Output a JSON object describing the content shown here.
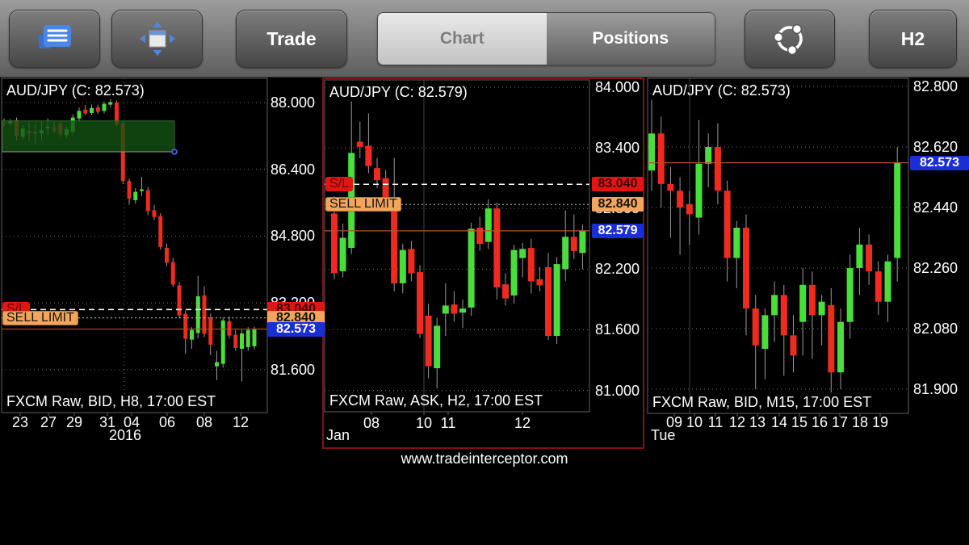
{
  "toolbar": {
    "buttons": {
      "trade": "Trade",
      "timeframe": "H2"
    },
    "tabs": [
      {
        "label": "Chart",
        "active": true
      },
      {
        "label": "Positions",
        "active": false
      }
    ],
    "icons": [
      "watchlist-icon",
      "arrange-windows-icon",
      "sync-icon"
    ]
  },
  "watermark": "www.tradeinterceptor.com",
  "colors": {
    "candle_up": "#4ade3c",
    "candle_down": "#ef2b20",
    "wick": "#9a9a9a",
    "grid": "#8a8a8a",
    "frame": "#5f5f5f",
    "current_price_line": "#b4532c",
    "price_tag_bg": "#1a2ed6",
    "stop_loss_bg": "#e31414",
    "sell_limit_bg": "#f3a55b",
    "selected_border": "#7c1414",
    "drawing_fill": "#145214"
  },
  "charts": [
    {
      "name": "chart-h8",
      "title": "AUD/JPY (C: 82.573)",
      "footer": "FXCM Raw, BID, H8, 17:00 EST",
      "selected": false,
      "y_axis": [
        {
          "p": 88.0,
          "t": "88.000"
        },
        {
          "p": 86.4,
          "t": "86.400"
        },
        {
          "p": 84.8,
          "t": "84.800"
        },
        {
          "p": 83.2,
          "t": "83.200"
        },
        {
          "p": 81.6,
          "t": "81.600"
        }
      ],
      "x_ticks": [
        "23",
        "27",
        "29",
        "31",
        "04",
        "06",
        "08",
        "12"
      ],
      "period": "2016",
      "orders": [
        {
          "kind": "sl",
          "tag": "S/L",
          "price": 83.04,
          "value": "83.040"
        },
        {
          "kind": "limit",
          "tag": "SELL LIMIT",
          "price": 82.84,
          "value": "82.840"
        }
      ],
      "current": {
        "price": 82.573,
        "label": "82.573"
      },
      "drawing": {
        "type": "rectangle",
        "top_price": 87.56,
        "bottom_price": 86.82
      },
      "candles": [
        [
          87.52,
          87.62,
          87.42,
          87.48
        ],
        [
          87.5,
          87.6,
          87.44,
          87.56
        ],
        [
          87.58,
          87.64,
          87.1,
          87.2
        ],
        [
          87.18,
          87.46,
          87.12,
          87.38
        ],
        [
          87.32,
          87.52,
          87.08,
          87.26
        ],
        [
          87.3,
          87.48,
          87.02,
          87.25
        ],
        [
          87.26,
          87.55,
          87.1,
          87.34
        ],
        [
          87.38,
          87.62,
          87.22,
          87.42
        ],
        [
          87.42,
          87.56,
          87.25,
          87.32
        ],
        [
          87.5,
          87.55,
          87.18,
          87.24
        ],
        [
          87.22,
          87.42,
          87.15,
          87.36
        ],
        [
          87.3,
          87.72,
          87.24,
          87.64
        ],
        [
          87.62,
          87.88,
          87.56,
          87.8
        ],
        [
          87.83,
          87.94,
          87.7,
          87.74
        ],
        [
          87.75,
          87.95,
          87.7,
          87.87
        ],
        [
          87.88,
          87.95,
          87.72,
          87.78
        ],
        [
          87.8,
          88.02,
          87.74,
          87.97
        ],
        [
          87.95,
          88.08,
          87.88,
          88.01
        ],
        [
          88.0,
          88.05,
          87.42,
          87.48
        ],
        [
          87.5,
          87.56,
          86.05,
          86.12
        ],
        [
          86.12,
          86.18,
          85.55,
          85.7
        ],
        [
          85.66,
          85.95,
          85.58,
          85.86
        ],
        [
          85.88,
          86.22,
          85.76,
          85.92
        ],
        [
          85.9,
          85.98,
          85.3,
          85.4
        ],
        [
          85.42,
          85.55,
          85.18,
          85.26
        ],
        [
          85.28,
          85.35,
          84.48,
          84.54
        ],
        [
          84.52,
          84.62,
          84.08,
          84.16
        ],
        [
          84.18,
          84.28,
          83.58,
          83.64
        ],
        [
          83.62,
          83.7,
          82.84,
          82.9
        ],
        [
          82.94,
          83.02,
          81.98,
          82.34
        ],
        [
          82.32,
          82.62,
          82.1,
          82.55
        ],
        [
          82.48,
          83.85,
          82.35,
          83.36
        ],
        [
          83.38,
          83.6,
          82.38,
          82.46
        ],
        [
          82.85,
          82.95,
          81.95,
          82.2
        ],
        [
          81.68,
          82.05,
          81.35,
          81.78
        ],
        [
          81.74,
          82.85,
          81.65,
          82.78
        ],
        [
          82.76,
          82.88,
          82.35,
          82.42
        ],
        [
          82.44,
          82.55,
          82.05,
          82.12
        ],
        [
          82.1,
          82.55,
          81.32,
          82.47
        ],
        [
          82.14,
          82.62,
          82.05,
          82.55
        ],
        [
          82.16,
          82.63,
          82.08,
          82.57
        ]
      ]
    },
    {
      "name": "chart-h2",
      "title": "AUD/JPY (C: 82.579)",
      "footer": "FXCM Raw, ASK, H2, 17:00 EST",
      "selected": true,
      "y_axis": [
        {
          "p": 84.0,
          "t": "84.000"
        },
        {
          "p": 83.4,
          "t": "83.400"
        },
        {
          "p": 82.8,
          "t": "82.800"
        },
        {
          "p": 82.2,
          "t": "82.200"
        },
        {
          "p": 81.6,
          "t": "81.600"
        },
        {
          "p": 81.0,
          "t": "81.000"
        }
      ],
      "x_ticks": [
        "08",
        "10",
        "11",
        "12"
      ],
      "period": "Jan",
      "orders": [
        {
          "kind": "sl",
          "tag": "S/L",
          "price": 83.04,
          "value": "83.040"
        },
        {
          "kind": "limit",
          "tag": "SELL LIMIT",
          "price": 82.84,
          "value": "82.840"
        }
      ],
      "current": {
        "price": 82.579,
        "label": "82.579"
      },
      "candles": [
        [
          82.75,
          82.92,
          82.1,
          82.16
        ],
        [
          82.18,
          82.65,
          82.12,
          82.51
        ],
        [
          82.41,
          83.86,
          82.35,
          83.35
        ],
        [
          83.46,
          83.66,
          83.3,
          83.41
        ],
        [
          83.42,
          83.74,
          83.15,
          83.22
        ],
        [
          83.2,
          83.3,
          83.0,
          83.08
        ],
        [
          83.1,
          83.18,
          82.82,
          82.88
        ],
        [
          82.8,
          83.3,
          81.98,
          82.06
        ],
        [
          82.06,
          82.45,
          81.96,
          82.39
        ],
        [
          82.4,
          82.48,
          82.08,
          82.16
        ],
        [
          82.17,
          82.24,
          81.52,
          81.56
        ],
        [
          81.74,
          81.86,
          81.12,
          81.24
        ],
        [
          81.22,
          81.72,
          81.02,
          81.64
        ],
        [
          81.76,
          82.06,
          81.54,
          81.84
        ],
        [
          81.85,
          81.98,
          81.68,
          81.76
        ],
        [
          81.77,
          81.9,
          81.62,
          81.81
        ],
        [
          81.82,
          82.66,
          81.74,
          82.6
        ],
        [
          82.61,
          82.72,
          82.38,
          82.45
        ],
        [
          82.47,
          82.89,
          82.4,
          82.8
        ],
        [
          82.8,
          82.86,
          81.9,
          82.02
        ],
        [
          82.05,
          82.16,
          81.84,
          81.91
        ],
        [
          81.94,
          82.44,
          81.86,
          82.39
        ],
        [
          82.31,
          82.46,
          82.12,
          82.4
        ],
        [
          82.41,
          82.5,
          81.96,
          82.08
        ],
        [
          82.1,
          82.22,
          81.98,
          82.04
        ],
        [
          82.22,
          82.36,
          81.5,
          81.54
        ],
        [
          81.54,
          82.32,
          81.46,
          82.25
        ],
        [
          82.2,
          82.78,
          82.08,
          82.52
        ],
        [
          82.52,
          82.74,
          82.3,
          82.38
        ],
        [
          82.36,
          82.64,
          82.2,
          82.579
        ]
      ]
    },
    {
      "name": "chart-m15",
      "title": "AUD/JPY (C: 82.573)",
      "footer": "FXCM Raw, BID, M15, 17:00 EST",
      "selected": false,
      "y_axis": [
        {
          "p": 82.8,
          "t": "82.800"
        },
        {
          "p": 82.62,
          "t": "82.620"
        },
        {
          "p": 82.44,
          "t": "82.440"
        },
        {
          "p": 82.26,
          "t": "82.260"
        },
        {
          "p": 82.08,
          "t": "82.080"
        },
        {
          "p": 81.9,
          "t": "81.900"
        }
      ],
      "x_ticks": [
        "09",
        "10",
        "11",
        "12",
        "13",
        "14",
        "15",
        "16",
        "17",
        "18",
        "19"
      ],
      "period": "Tue",
      "orders": [],
      "current": {
        "price": 82.573,
        "label": "82.573"
      },
      "candles": [
        [
          82.55,
          82.76,
          82.49,
          82.66
        ],
        [
          82.66,
          82.71,
          82.44,
          82.51
        ],
        [
          82.51,
          82.56,
          82.35,
          82.49
        ],
        [
          82.49,
          82.53,
          82.3,
          82.44
        ],
        [
          82.45,
          82.49,
          82.33,
          82.42
        ],
        [
          82.41,
          82.7,
          82.36,
          82.57
        ],
        [
          82.57,
          82.66,
          82.5,
          82.62
        ],
        [
          82.62,
          82.69,
          82.45,
          82.49
        ],
        [
          82.49,
          82.52,
          82.22,
          82.29
        ],
        [
          82.29,
          82.4,
          82.2,
          82.38
        ],
        [
          82.38,
          82.42,
          82.06,
          82.14
        ],
        [
          82.14,
          82.18,
          81.9,
          82.03
        ],
        [
          82.02,
          82.14,
          81.93,
          82.12
        ],
        [
          82.12,
          82.22,
          82.04,
          82.18
        ],
        [
          82.18,
          82.21,
          81.94,
          82.06
        ],
        [
          82.06,
          82.12,
          81.95,
          82.0
        ],
        [
          82.1,
          82.26,
          82.0,
          82.21
        ],
        [
          82.21,
          82.25,
          81.99,
          82.12
        ],
        [
          82.12,
          82.18,
          82.03,
          82.16
        ],
        [
          82.15,
          82.2,
          81.89,
          81.95
        ],
        [
          81.95,
          82.14,
          81.9,
          82.1
        ],
        [
          82.1,
          82.3,
          82.05,
          82.26
        ],
        [
          82.26,
          82.38,
          82.18,
          82.33
        ],
        [
          82.33,
          82.36,
          82.21,
          82.25
        ],
        [
          82.25,
          82.28,
          82.12,
          82.16
        ],
        [
          82.16,
          82.3,
          82.1,
          82.28
        ],
        [
          82.29,
          82.62,
          82.22,
          82.573
        ]
      ]
    }
  ]
}
